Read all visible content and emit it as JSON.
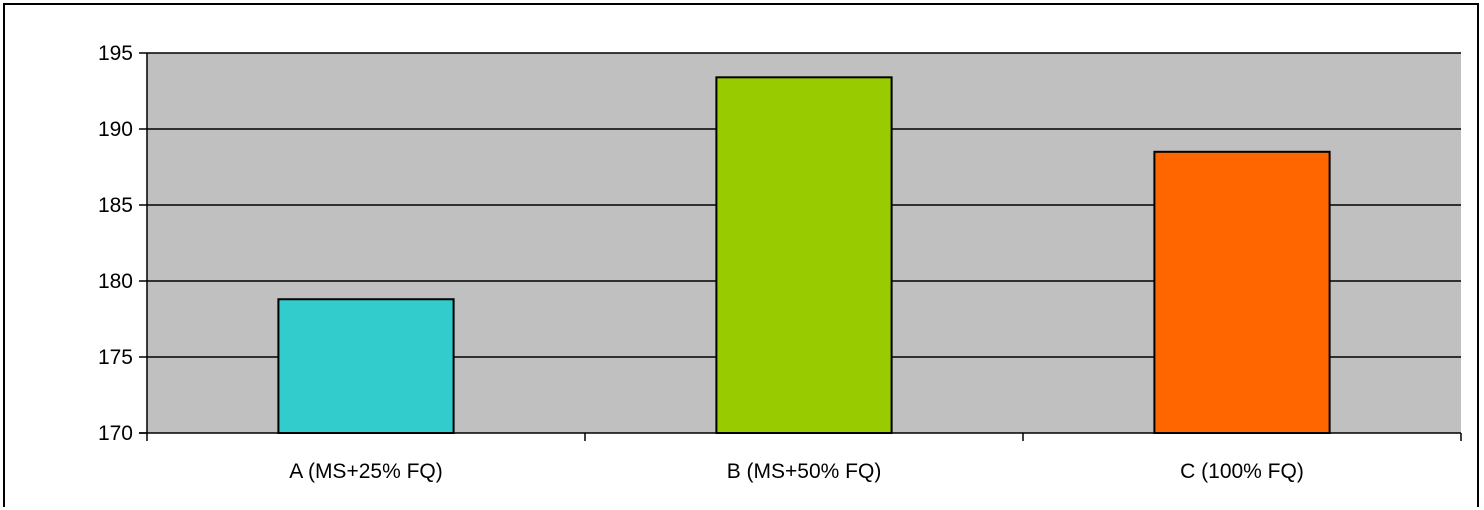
{
  "chart_data": {
    "type": "bar",
    "categories": [
      "A (MS+25% FQ)",
      "B (MS+50% FQ)",
      "C (100% FQ)"
    ],
    "values": [
      178.8,
      193.4,
      188.5
    ],
    "colors": [
      "#33CCCC",
      "#99CC00",
      "#FF6600"
    ],
    "plot_background": "#C0C0C0",
    "ylim": [
      170,
      195
    ],
    "yticks": [
      "170",
      "175",
      "180",
      "185",
      "190",
      "195"
    ],
    "grid": true,
    "legend": "none",
    "title": "",
    "xlabel": "",
    "ylabel": ""
  }
}
